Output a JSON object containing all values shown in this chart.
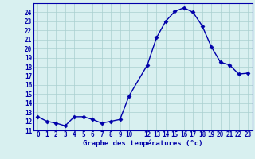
{
  "hours": [
    0,
    1,
    2,
    3,
    4,
    5,
    6,
    7,
    8,
    9,
    10,
    12,
    13,
    14,
    15,
    16,
    17,
    18,
    19,
    20,
    21,
    22,
    23
  ],
  "temps": [
    12.5,
    12.0,
    11.8,
    11.5,
    12.5,
    12.5,
    12.2,
    11.8,
    12.0,
    12.2,
    14.8,
    18.2,
    21.2,
    23.0,
    24.1,
    24.5,
    24.0,
    22.5,
    20.2,
    18.5,
    18.2,
    17.2,
    17.3
  ],
  "ylim": [
    11,
    25
  ],
  "xlim_min": -0.5,
  "xlim_max": 23.5,
  "yticks": [
    11,
    12,
    13,
    14,
    15,
    16,
    17,
    18,
    19,
    20,
    21,
    22,
    23,
    24
  ],
  "xticks": [
    0,
    1,
    2,
    3,
    4,
    5,
    6,
    7,
    8,
    9,
    10,
    12,
    13,
    14,
    15,
    16,
    17,
    18,
    19,
    20,
    21,
    22,
    23
  ],
  "xlabel": "Graphe des températures (°c)",
  "line_color": "#0000aa",
  "marker": "D",
  "marker_size": 2.5,
  "bg_color": "#d8f0f0",
  "grid_color": "#aacfcf",
  "axis_color": "#0000aa",
  "label_fontsize": 5.5,
  "xlabel_fontsize": 6.5
}
